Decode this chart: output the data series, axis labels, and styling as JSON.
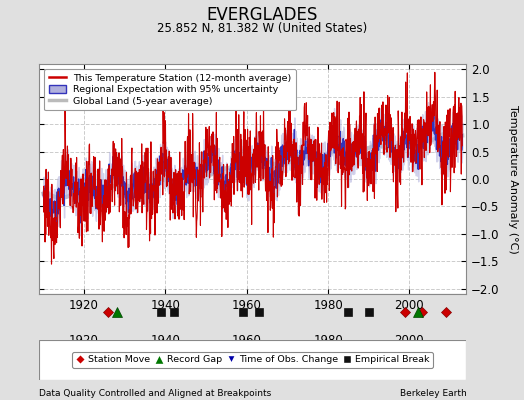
{
  "title": "EVERGLADES",
  "subtitle": "25.852 N, 81.382 W (United States)",
  "ylabel": "Temperature Anomaly (°C)",
  "xlabel_note": "Data Quality Controlled and Aligned at Breakpoints",
  "credit": "Berkeley Earth",
  "year_start": 1910,
  "year_end": 2013,
  "ylim": [
    -2.1,
    2.1
  ],
  "yticks": [
    -2,
    -1.5,
    -1,
    -0.5,
    0,
    0.5,
    1,
    1.5,
    2
  ],
  "xticks": [
    1920,
    1940,
    1960,
    1980,
    2000
  ],
  "bg_color": "#e0e0e0",
  "plot_bg_color": "#ffffff",
  "red_color": "#cc0000",
  "blue_color": "#3333bb",
  "blue_shade_color": "#b0b0dd",
  "gray_color": "#bbbbbb",
  "station_move_color": "#cc0000",
  "record_gap_color": "#007700",
  "time_obs_color": "#0000aa",
  "emp_break_color": "#111111",
  "station_moves": [
    1926,
    1999,
    2003,
    2009
  ],
  "record_gaps": [
    1928,
    2002
  ],
  "time_obs_changes": [],
  "empirical_breaks": [
    1939,
    1942,
    1959,
    1963,
    1985,
    1990
  ]
}
